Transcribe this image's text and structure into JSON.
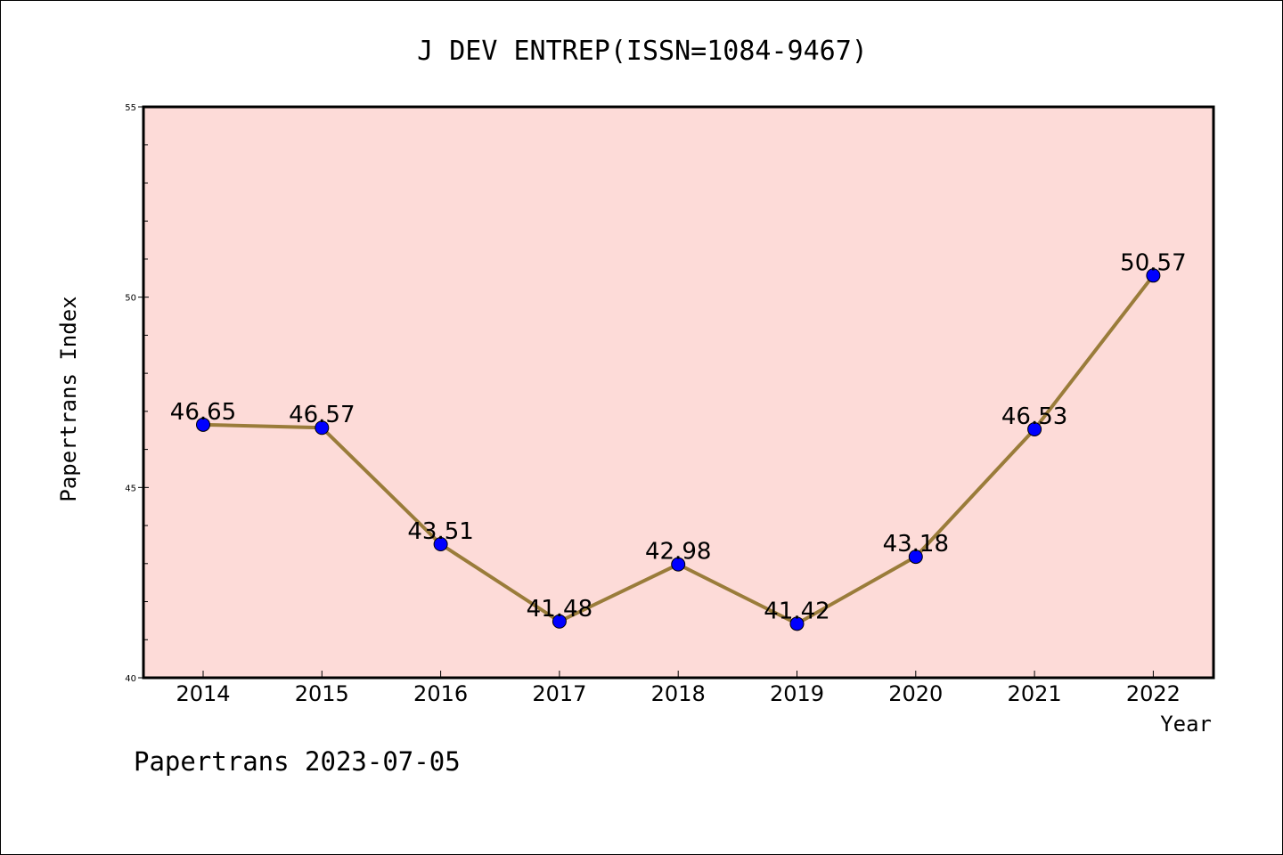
{
  "chart_data": {
    "type": "line",
    "title": "J DEV ENTREP(ISSN=1084-9467)",
    "xlabel": "Year",
    "ylabel": "Papertrans Index",
    "categories": [
      "2014",
      "2015",
      "2016",
      "2017",
      "2018",
      "2019",
      "2020",
      "2021",
      "2022"
    ],
    "series": [
      {
        "values": [
          46.65,
          46.57,
          43.51,
          41.48,
          42.98,
          41.42,
          43.18,
          46.53,
          50.57
        ],
        "labels": [
          "46.65",
          "46.57",
          "43.51",
          "41.48",
          "42.98",
          "41.42",
          "43.18",
          "46.53",
          "50.57"
        ]
      }
    ],
    "ylim": [
      40,
      55
    ],
    "yticks": [
      40,
      45,
      50,
      55
    ],
    "y_minor_step": 1,
    "grid": false,
    "plot_background": "#fddbd8",
    "line_color": "#9a7c3a",
    "marker_color": "#0000ff"
  },
  "footer": {
    "text": "Papertrans 2023-07-05"
  }
}
